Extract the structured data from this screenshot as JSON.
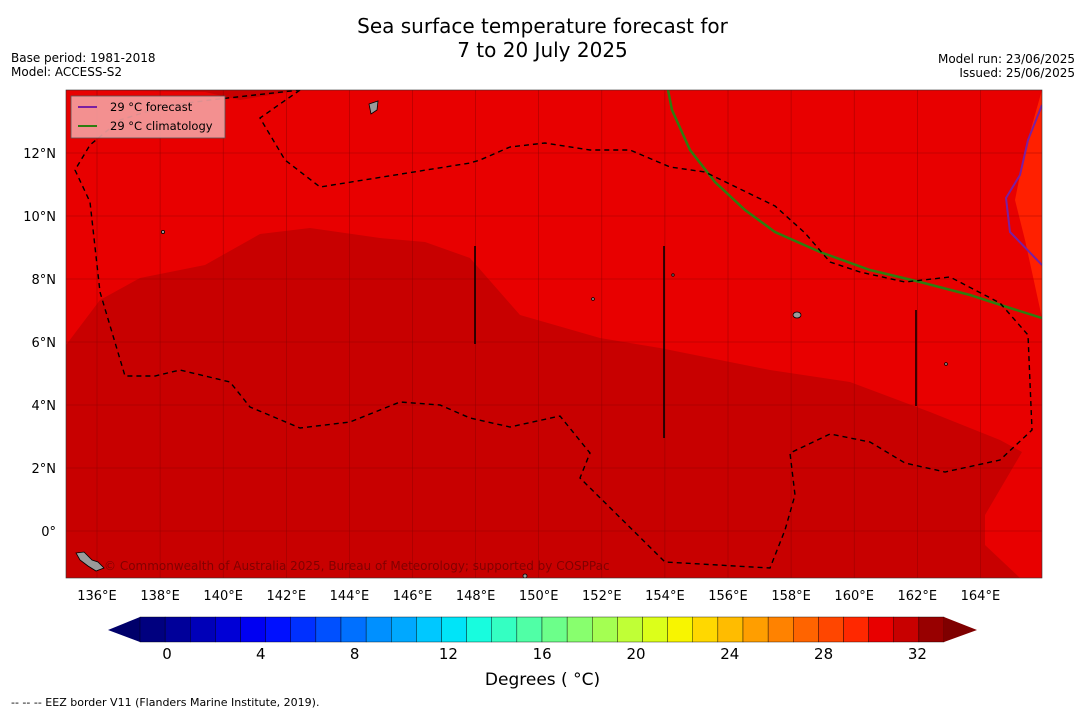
{
  "title_line1": "Sea surface temperature forecast for",
  "title_line2": "7 to 20 July 2025",
  "base_period": "Base period: 1981-2018",
  "model": "Model: ACCESS-S2",
  "model_run": "Model run: 23/06/2025",
  "issued": "Issued: 25/06/2025",
  "legend": {
    "forecast": "29 °C  forecast",
    "climatology": "29 °C  climatology",
    "forecast_color": "#7a1fa2",
    "climatology_color": "#2e7d10"
  },
  "watermark": "© Commonwealth of Australia 2025, Bureau of Meteorology; supported by COSPPac",
  "lat_labels": [
    "12°N",
    "10°N",
    "8°N",
    "6°N",
    "4°N",
    "2°N",
    "0°"
  ],
  "lon_labels": [
    "136°E",
    "138°E",
    "140°E",
    "142°E",
    "144°E",
    "146°E",
    "148°E",
    "150°E",
    "152°E",
    "154°E",
    "156°E",
    "158°E",
    "160°E",
    "162°E",
    "164°E"
  ],
  "colorbar": {
    "tick_labels": [
      "0",
      "4",
      "8",
      "12",
      "16",
      "20",
      "24",
      "28",
      "32"
    ],
    "title": "Degrees ( °C)",
    "colors": [
      "#00007f",
      "#00009a",
      "#0000b8",
      "#0000d6",
      "#0000f2",
      "#0010ff",
      "#0030ff",
      "#0050ff",
      "#0070ff",
      "#0090ff",
      "#00a8ff",
      "#00c8ff",
      "#00e4f8",
      "#18fcde",
      "#34ffc2",
      "#50ffa6",
      "#6cff8a",
      "#88ff6e",
      "#a4ff52",
      "#c0ff36",
      "#dcff1a",
      "#f8f500",
      "#ffd800",
      "#ffbc00",
      "#ff9e00",
      "#ff8200",
      "#ff6400",
      "#ff4600",
      "#ff2800",
      "#e80000",
      "#c80000",
      "#980000"
    ],
    "under_color": "#00006a",
    "over_color": "#7f0000"
  },
  "footer": "--  --  -- EEZ border V11 (Flanders Marine Institute, 2019)."
}
